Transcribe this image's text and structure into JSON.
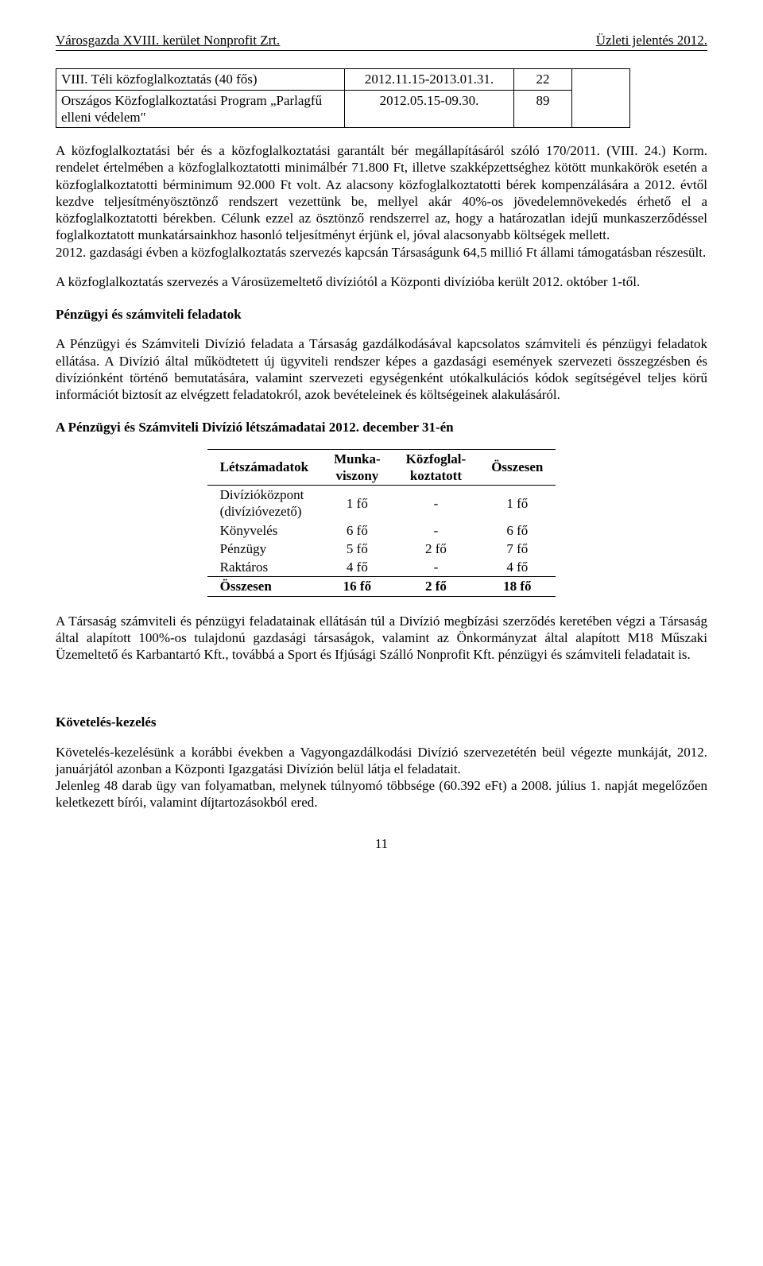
{
  "header": {
    "left": "Városgazda XVIII. kerület Nonprofit Zrt.",
    "right": "Üzleti jelentés 2012."
  },
  "inner_table": {
    "rows": [
      {
        "label": "VIII. Téli közfoglalkoztatás (40 fős)",
        "date": "2012.11.15-2013.01.31.",
        "num": "22"
      },
      {
        "label": "Országos Közfoglalkoztatási Program „Parlagfű elleni védelem\"",
        "date": "2012.05.15-09.30.",
        "num": "89"
      }
    ]
  },
  "para1": "A közfoglalkoztatási bér és a közfoglalkoztatási garantált bér megállapításáról szóló 170/2011. (VIII. 24.) Korm. rendelet értelmében a közfoglalkoztatotti minimálbér 71.800 Ft, illetve szakképzettséghez kötött munkakörök esetén a közfoglalkoztatotti bérminimum 92.000 Ft volt. Az alacsony közfoglalkoztatotti bérek kompenzálására a 2012. évtől kezdve teljesítményösztönző rendszert vezettünk be, mellyel akár 40%-os jövedelemnövekedés érhető el a közfoglalkoztatotti bérekben. Célunk ezzel az ösztönző rendszerrel az, hogy a határozatlan idejű munkaszerződéssel foglalkoztatott munkatársainkhoz hasonló teljesítményt érjünk el, jóval alacsonyabb költségek mellett.",
  "para1b": "2012. gazdasági évben a közfoglalkoztatás szervezés kapcsán Társaságunk 64,5 millió Ft állami támogatásban részesült.",
  "para2": "A közfoglalkoztatás szervezés a Városüzemeltető divíziótól a Központi divízióba került 2012. október 1-től.",
  "heading1": "Pénzügyi és számviteli feladatok",
  "para3": "A Pénzügyi és Számviteli Divízió feladata a Társaság gazdálkodásával kapcsolatos számviteli és pénzügyi feladatok ellátása. A Divízió által működtetett új ügyviteli rendszer képes a gazdasági események szervezeti összegzésben és divíziónként történő bemutatására, valamint szervezeti egységenként utókalkulációs kódok segítségével teljes körű információt biztosít az elvégzett feladatokról, azok bevételeinek és költségeinek alakulásáról.",
  "heading2": "A Pénzügyi és Számviteli Divízió létszámadatai 2012. december 31-én",
  "staff_table": {
    "columns": [
      "Létszámadatok",
      "Munka-viszony",
      "Közfoglal-koztatott",
      "Összesen"
    ],
    "rows": [
      {
        "label": "Divízióközpont (divízióvezető)",
        "c1": "1 fő",
        "c2": "-",
        "c3": "1 fő"
      },
      {
        "label": "Könyvelés",
        "c1": "6 fő",
        "c2": "-",
        "c3": "6 fő"
      },
      {
        "label": "Pénzügy",
        "c1": "5 fő",
        "c2": "2 fő",
        "c3": "7 fő"
      },
      {
        "label": "Raktáros",
        "c1": "4 fő",
        "c2": "-",
        "c3": "4 fő"
      }
    ],
    "total": {
      "label": "Összesen",
      "c1": "16 fő",
      "c2": "2 fő",
      "c3": "18 fő"
    }
  },
  "para4": "A Társaság számviteli és pénzügyi feladatainak ellátásán túl a Divízió megbízási szerződés keretében végzi a Társaság által alapított 100%-os tulajdonú gazdasági társaságok, valamint az Önkormányzat által alapított M18 Műszaki Üzemeltető és Karbantartó Kft., továbbá a Sport és Ifjúsági Szálló Nonprofit Kft. pénzügyi és számviteli feladatait is.",
  "heading3": "Követelés-kezelés",
  "para5": "Követelés-kezelésünk a korábbi években a Vagyongazdálkodási Divízió szervezetétén beül végezte munkáját, 2012. januárjától azonban a Központi Igazgatási Divízión belül látja el feladatait.",
  "para6": "Jelenleg 48 darab ügy van folyamatban, melynek túlnyomó többsége (60.392 eFt) a 2008. július 1. napját megelőzően keletkezett bírói, valamint díjtartozásokból ered.",
  "page_number": "11"
}
